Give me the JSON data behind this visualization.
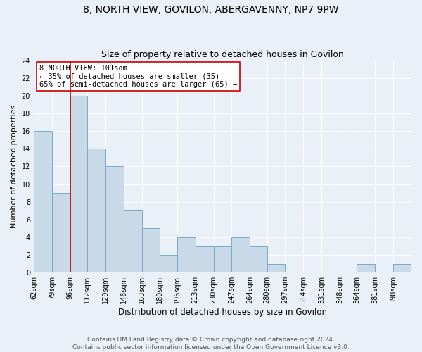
{
  "title": "8, NORTH VIEW, GOVILON, ABERGAVENNY, NP7 9PW",
  "subtitle": "Size of property relative to detached houses in Govilon",
  "xlabel": "Distribution of detached houses by size in Govilon",
  "ylabel": "Number of detached properties",
  "bar_edges": [
    62,
    79,
    96,
    112,
    129,
    146,
    163,
    180,
    196,
    213,
    230,
    247,
    264,
    280,
    297,
    314,
    331,
    348,
    364,
    381,
    398
  ],
  "bar_labels": [
    "62sqm",
    "79sqm",
    "96sqm",
    "112sqm",
    "129sqm",
    "146sqm",
    "163sqm",
    "180sqm",
    "196sqm",
    "213sqm",
    "230sqm",
    "247sqm",
    "264sqm",
    "280sqm",
    "297sqm",
    "314sqm",
    "331sqm",
    "348sqm",
    "364sqm",
    "381sqm",
    "398sqm"
  ],
  "bar_heights": [
    16,
    9,
    20,
    14,
    12,
    7,
    5,
    2,
    4,
    3,
    3,
    4,
    3,
    1,
    0,
    0,
    0,
    0,
    1,
    0,
    1
  ],
  "bar_color": "#c9d9e8",
  "bar_edge_color": "#7aaac8",
  "vline_x": 96,
  "vline_color": "#cc0000",
  "annotation_text": "8 NORTH VIEW: 101sqm\n← 35% of detached houses are smaller (35)\n65% of semi-detached houses are larger (65) →",
  "annotation_box_color": "#ffffff",
  "annotation_border_color": "#cc0000",
  "ylim": [
    0,
    24
  ],
  "yticks": [
    0,
    2,
    4,
    6,
    8,
    10,
    12,
    14,
    16,
    18,
    20,
    22,
    24
  ],
  "bg_color": "#eaf0f8",
  "plot_bg_color": "#eaf0f8",
  "footer_line1": "Contains HM Land Registry data © Crown copyright and database right 2024.",
  "footer_line2": "Contains public sector information licensed under the Open Government Licence v3.0.",
  "title_fontsize": 10,
  "subtitle_fontsize": 9,
  "xlabel_fontsize": 8.5,
  "ylabel_fontsize": 8,
  "tick_fontsize": 7,
  "annotation_fontsize": 7.5,
  "footer_fontsize": 6.5
}
